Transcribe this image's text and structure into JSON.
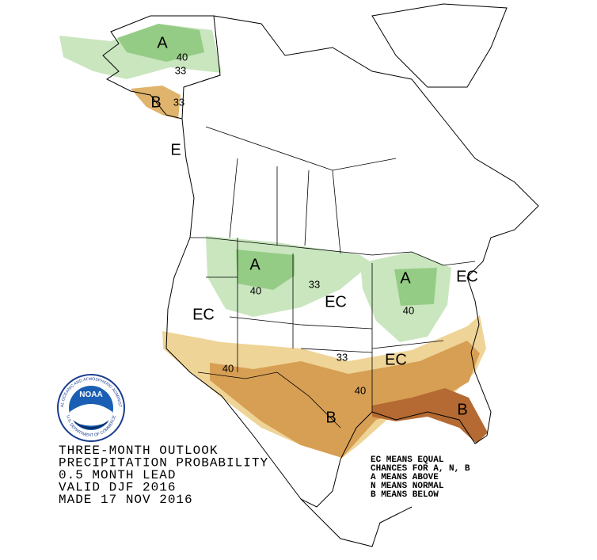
{
  "title_lines": [
    "THREE-MONTH OUTLOOK",
    "PRECIPITATION PROBABILITY",
    "0.5 MONTH LEAD",
    "VALID DJF 2016",
    "MADE 17 NOV 2016"
  ],
  "legend_lines": [
    "EC MEANS EQUAL",
    "CHANCES FOR A, N, B",
    "A MEANS ABOVE",
    "N MEANS NORMAL",
    "B MEANS BELOW"
  ],
  "logo": {
    "abbr": "NOAA",
    "ring_top": "NATIONAL OCEANIC AND ATMOSPHERIC ADMINISTRATION",
    "ring_bottom": "U.S. DEPARTMENT OF COMMERCE"
  },
  "map_labels": [
    "A",
    "40",
    "33",
    "B",
    "33",
    "E",
    "A",
    "40",
    "33",
    "EC",
    "EC",
    "A",
    "40",
    "EC",
    "33",
    "40",
    "EC",
    "40",
    "B",
    "B"
  ]
}
